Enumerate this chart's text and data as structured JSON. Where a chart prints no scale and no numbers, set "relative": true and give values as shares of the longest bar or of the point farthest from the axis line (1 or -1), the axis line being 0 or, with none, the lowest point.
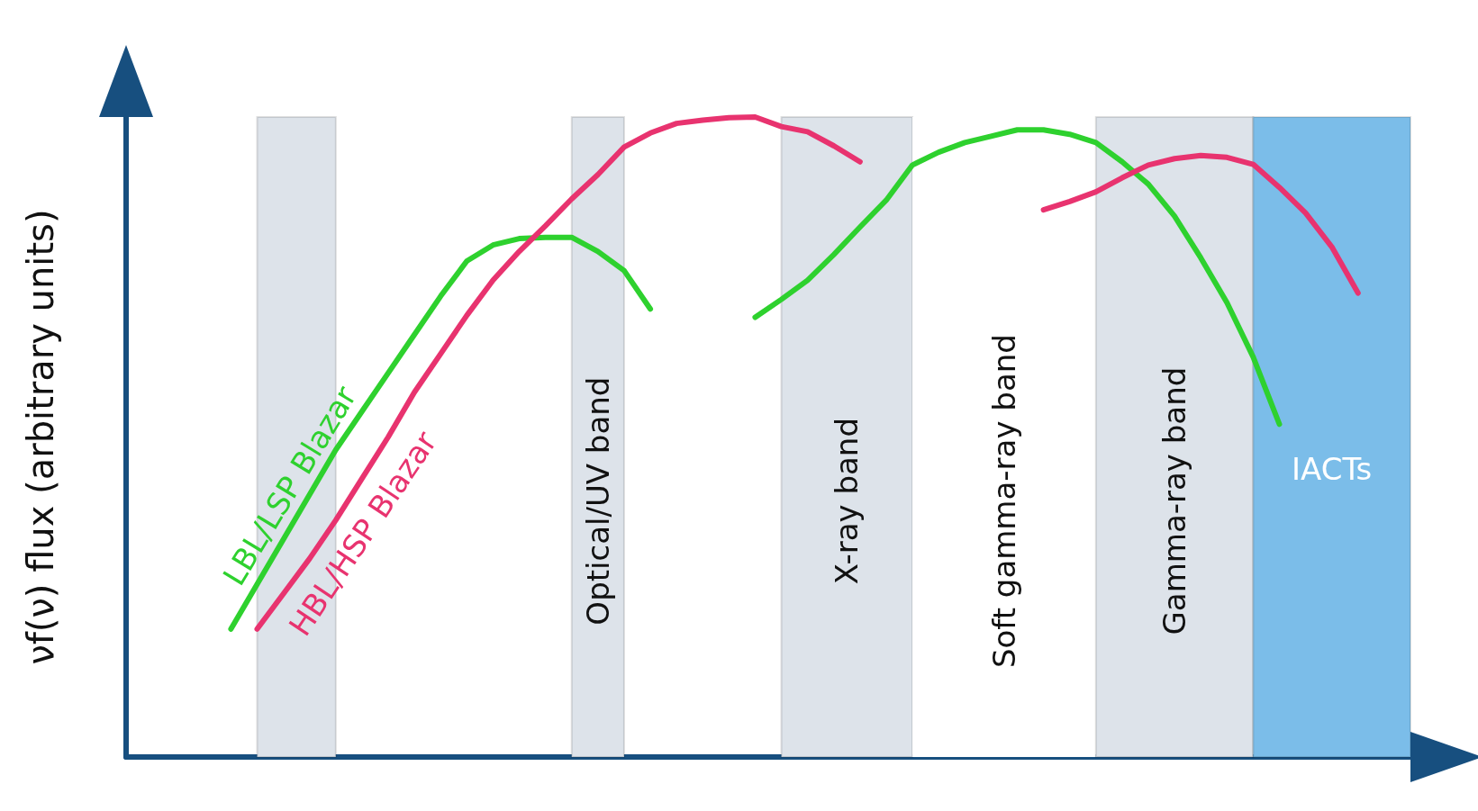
{
  "chart_data": {
    "type": "line",
    "relative": true,
    "ylabel": "νf(ν) flux (arbitrary units)",
    "marker": "none",
    "line_style": "solid",
    "categories": [
      null,
      null,
      null,
      null,
      null,
      null,
      null,
      null,
      null,
      null,
      null,
      null,
      null,
      null,
      null,
      null,
      null,
      null,
      null,
      null,
      null,
      null,
      null,
      null,
      null,
      null,
      null,
      null,
      null,
      null,
      null,
      null,
      null,
      null,
      null,
      null,
      null,
      null,
      null,
      null,
      null,
      null,
      null,
      null,
      null,
      null,
      null,
      null,
      null,
      null
    ],
    "series": [
      {
        "name": "LBL/LSP Blazar",
        "color": "#2ed12e",
        "values": [
          null,
          null,
          null,
          null,
          0.2,
          0.27,
          0.34,
          0.41,
          0.48,
          0.54,
          0.6,
          0.66,
          0.72,
          0.775,
          0.8,
          0.81,
          0.812,
          0.812,
          0.79,
          0.76,
          0.7,
          null,
          null,
          null,
          null,
          null,
          null,
          null,
          null,
          null,
          null,
          null,
          null,
          null,
          null,
          null,
          null,
          null,
          null,
          null,
          null,
          null,
          null,
          null,
          null,
          null,
          null,
          null,
          null,
          null
        ]
      },
      {
        "name": "HBL/HSP Blazar",
        "color": "#e8336f",
        "values": [
          null,
          null,
          null,
          null,
          null,
          0.2,
          0.255,
          0.31,
          0.37,
          0.435,
          0.5,
          0.57,
          0.63,
          0.69,
          0.745,
          0.79,
          0.83,
          0.872,
          0.91,
          0.953,
          0.975,
          0.99,
          0.995,
          0.999,
          1,
          0.985,
          0.977,
          0.955,
          0.93,
          null,
          null,
          null,
          null,
          null,
          null,
          null,
          null,
          null,
          null,
          null,
          null,
          null,
          null,
          null,
          null,
          null,
          null,
          null,
          null,
          null
        ]
      },
      {
        "color": "#2ed12e",
        "values": [
          null,
          null,
          null,
          null,
          null,
          null,
          null,
          null,
          null,
          null,
          null,
          null,
          null,
          null,
          null,
          null,
          null,
          null,
          null,
          null,
          null,
          null,
          null,
          null,
          0.687,
          0.715,
          0.745,
          0.785,
          0.828,
          0.87,
          0.925,
          0.945,
          0.96,
          0.97,
          0.98,
          0.98,
          0.973,
          0.96,
          0.93,
          0.895,
          0.845,
          0.78,
          0.71,
          0.625,
          0.52,
          null,
          null,
          null,
          null,
          null
        ]
      },
      {
        "color": "#e8336f",
        "values": [
          null,
          null,
          null,
          null,
          null,
          null,
          null,
          null,
          null,
          null,
          null,
          null,
          null,
          null,
          null,
          null,
          null,
          null,
          null,
          null,
          null,
          null,
          null,
          null,
          null,
          null,
          null,
          null,
          null,
          null,
          null,
          null,
          null,
          null,
          null,
          0.855,
          0.868,
          0.883,
          0.905,
          0.925,
          0.935,
          0.94,
          0.937,
          0.926,
          0.89,
          0.85,
          0.797,
          0.725,
          null,
          null
        ]
      }
    ],
    "annotations": [
      "Optical/UV band",
      "X-ray band",
      "Soft gamma-ray band",
      "Gamma-ray band",
      "IACTs"
    ]
  }
}
